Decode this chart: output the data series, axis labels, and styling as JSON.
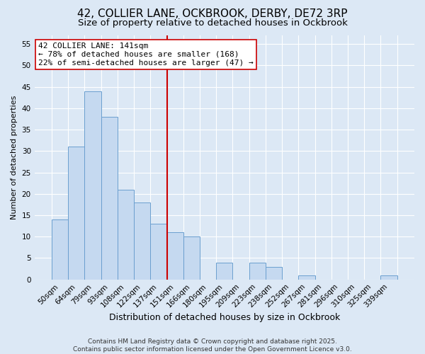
{
  "title": "42, COLLIER LANE, OCKBROOK, DERBY, DE72 3RP",
  "subtitle": "Size of property relative to detached houses in Ockbrook",
  "xlabel": "Distribution of detached houses by size in Ockbrook",
  "ylabel": "Number of detached properties",
  "categories": [
    "50sqm",
    "64sqm",
    "79sqm",
    "93sqm",
    "108sqm",
    "122sqm",
    "137sqm",
    "151sqm",
    "166sqm",
    "180sqm",
    "195sqm",
    "209sqm",
    "223sqm",
    "238sqm",
    "252sqm",
    "267sqm",
    "281sqm",
    "296sqm",
    "310sqm",
    "325sqm",
    "339sqm"
  ],
  "values": [
    14,
    31,
    44,
    38,
    21,
    18,
    13,
    11,
    10,
    0,
    4,
    0,
    4,
    3,
    0,
    1,
    0,
    0,
    0,
    0,
    1
  ],
  "bar_color": "#c5d9f0",
  "bar_edge_color": "#6b9fcf",
  "bar_width": 1.0,
  "vline_index": 7,
  "vline_color": "#cc0000",
  "ylim": [
    0,
    57
  ],
  "yticks": [
    0,
    5,
    10,
    15,
    20,
    25,
    30,
    35,
    40,
    45,
    50,
    55
  ],
  "annotation_title": "42 COLLIER LANE: 141sqm",
  "annotation_line1": "← 78% of detached houses are smaller (168)",
  "annotation_line2": "22% of semi-detached houses are larger (47) →",
  "annotation_box_color": "#ffffff",
  "annotation_border_color": "#cc0000",
  "bg_color": "#dce8f5",
  "grid_color": "#ffffff",
  "footer1": "Contains HM Land Registry data © Crown copyright and database right 2025.",
  "footer2": "Contains public sector information licensed under the Open Government Licence v3.0.",
  "title_fontsize": 11,
  "subtitle_fontsize": 9.5,
  "xlabel_fontsize": 9,
  "ylabel_fontsize": 8,
  "tick_fontsize": 7.5,
  "annotation_fontsize": 8,
  "footer_fontsize": 6.5
}
